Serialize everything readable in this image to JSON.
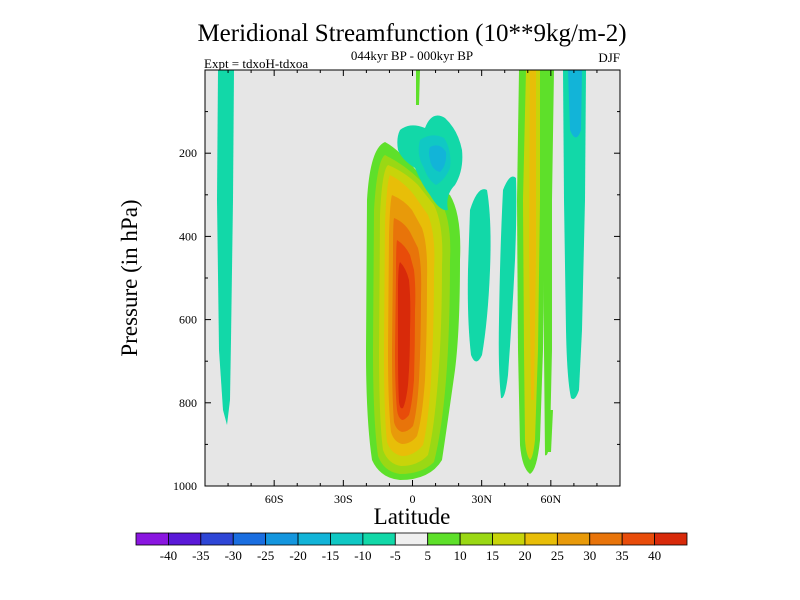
{
  "chart_data": {
    "type": "heatmap",
    "title": "Meridional Streamfunction (10**9kg/m-2)",
    "subtitle_center": "044kyr BP - 000kyr BP",
    "subtitle_left": "Expt = tdxoH-tdxoa",
    "subtitle_right": "DJF",
    "xlabel": "Latitude",
    "ylabel": "Pressure (in hPa)",
    "xlim": [
      -90,
      90
    ],
    "ylim": [
      1000,
      0
    ],
    "x_ticks": [
      {
        "value": -60,
        "label": "60S"
      },
      {
        "value": -30,
        "label": "30S"
      },
      {
        "value": 0,
        "label": "0"
      },
      {
        "value": 30,
        "label": "30N"
      },
      {
        "value": 60,
        "label": "60N"
      }
    ],
    "y_ticks": [
      {
        "value": 200,
        "label": "200"
      },
      {
        "value": 400,
        "label": "400"
      },
      {
        "value": 600,
        "label": "600"
      },
      {
        "value": 800,
        "label": "800"
      },
      {
        "value": 1000,
        "label": "1000"
      }
    ],
    "background_color": "#e6e6e6",
    "colorbar": {
      "levels": [
        "-40",
        "-35",
        "-30",
        "-25",
        "-20",
        "-15",
        "-10",
        "-5",
        "5",
        "10",
        "15",
        "20",
        "25",
        "30",
        "35",
        "40"
      ],
      "colors": [
        "#8a16e0",
        "#5a19d8",
        "#2e46d6",
        "#1a6ee0",
        "#1496de",
        "#12b4d8",
        "#10c8c4",
        "#12d8a8",
        "#f0f0f0",
        "#5ee02a",
        "#9ad814",
        "#c8d40a",
        "#e8be08",
        "#e89a0a",
        "#e8740a",
        "#e84c0a",
        "#d82a0a"
      ]
    },
    "features": [
      {
        "name": "Hadley cell (positive)",
        "lat_range": [
          -20,
          20
        ],
        "p_range": [
          180,
          980
        ],
        "peak_value": 40,
        "peak_location": {
          "lat": -2,
          "p": 650
        }
      },
      {
        "name": "upper tropical negative cell",
        "lat_range": [
          -5,
          25
        ],
        "p_range": [
          90,
          290
        ],
        "peak_value": -15,
        "peak_location": {
          "lat": 12,
          "p": 180
        }
      },
      {
        "name": "southern high-latitude negative band",
        "lat_range": [
          -85,
          -76
        ],
        "p_range": [
          0,
          860
        ],
        "peak_value": -7
      },
      {
        "name": "northern mid-latitude positive band",
        "lat_range": [
          47,
          58
        ],
        "p_range": [
          0,
          970
        ],
        "peak_value": 20
      },
      {
        "name": "northern high-latitude negative band",
        "lat_range": [
          67,
          77
        ],
        "p_range": [
          0,
          800
        ],
        "peak_value": -12
      },
      {
        "name": "subtropical weak negative streaks",
        "lat_range": [
          25,
          45
        ],
        "p_range": [
          240,
          800
        ],
        "peak_value": -7
      }
    ]
  }
}
